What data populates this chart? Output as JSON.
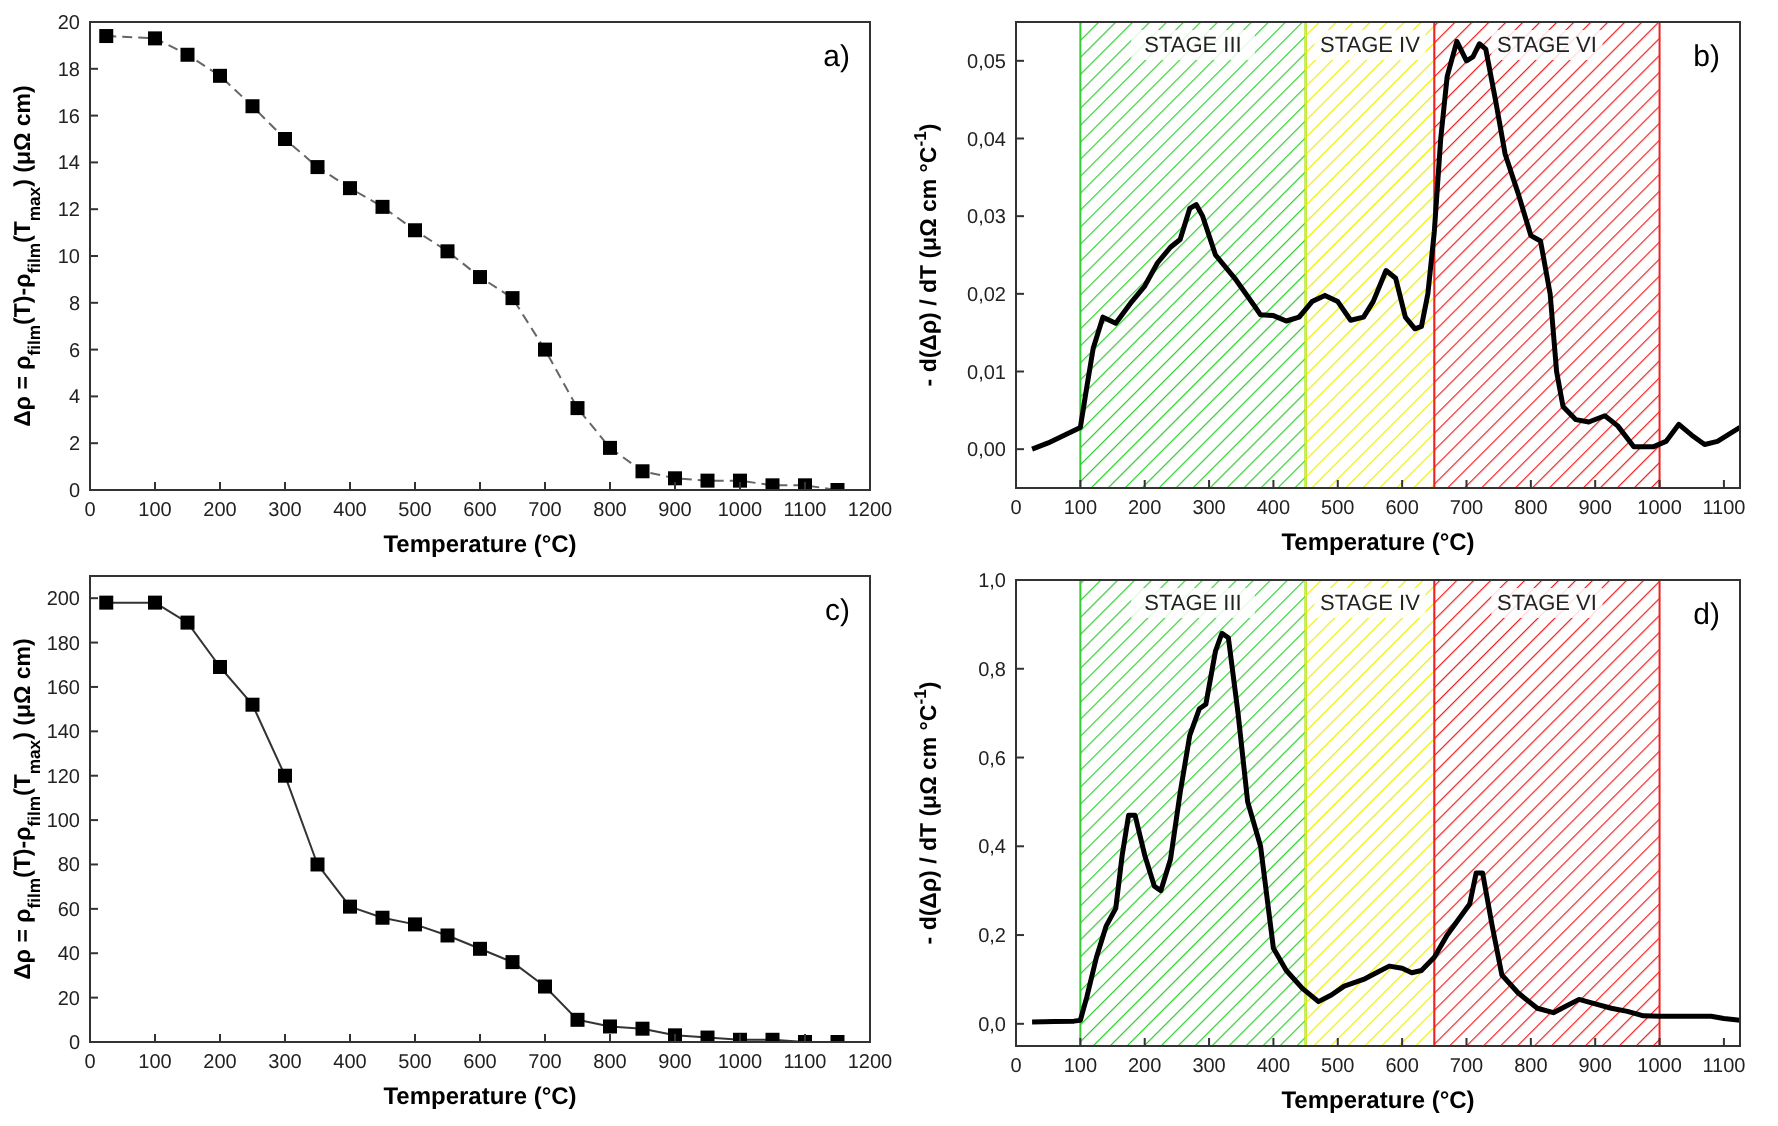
{
  "chart_data": [
    {
      "type": "line",
      "xlabel": "Temperature (°C)",
      "ylabel": "Δρ = ρ$_{film}$(T)-ρ$_{film}$(T$_{max}$) (μΩ cm)",
      "annotations": [
        "a)"
      ],
      "xlim": [
        0,
        1200
      ],
      "ylim": [
        0,
        20
      ],
      "xticks": [
        0,
        100,
        200,
        300,
        400,
        500,
        600,
        700,
        800,
        900,
        1000,
        1100,
        1200
      ],
      "yticks": [
        0,
        2,
        4,
        6,
        8,
        10,
        12,
        14,
        16,
        18,
        20
      ],
      "marker": "square",
      "line_style": "dashed",
      "x": [
        25,
        100,
        150,
        200,
        250,
        300,
        350,
        400,
        450,
        500,
        550,
        600,
        650,
        700,
        750,
        800,
        850,
        900,
        950,
        1000,
        1050,
        1100,
        1150
      ],
      "series": [
        {
          "color": "#000000",
          "values": [
            19.4,
            19.3,
            18.6,
            17.7,
            16.4,
            15.0,
            13.8,
            12.9,
            12.1,
            11.1,
            10.2,
            9.1,
            8.2,
            6.0,
            3.5,
            1.8,
            0.8,
            0.5,
            0.4,
            0.4,
            0.2,
            0.2,
            0.0
          ]
        }
      ]
    },
    {
      "type": "line",
      "xlabel": "Temperature (°C)",
      "ylabel": "- d(Δρ) / dT (μΩ cm °C$^{-1}$)",
      "annotations": [
        "b)"
      ],
      "xlim": [
        0,
        1125
      ],
      "ylim": [
        -0.005,
        0.055
      ],
      "xticks": [
        0,
        100,
        200,
        300,
        400,
        500,
        600,
        700,
        800,
        900,
        1000,
        1100
      ],
      "yticks": [
        {
          "value": 0,
          "label": "0,00"
        },
        {
          "value": 0.01,
          "label": "0,01"
        },
        {
          "value": 0.02,
          "label": "0,02"
        },
        {
          "value": 0.03,
          "label": "0,03"
        },
        {
          "value": 0.04,
          "label": "0,04"
        },
        {
          "value": 0.05,
          "label": "0,05"
        }
      ],
      "bands": [
        {
          "axis": "x",
          "from": 100,
          "to": 450,
          "label": "STAGE III",
          "color": "#33cc33"
        },
        {
          "axis": "x",
          "from": 450,
          "to": 650,
          "label": "STAGE IV",
          "color": "#eeee00"
        },
        {
          "axis": "x",
          "from": 650,
          "to": 1000,
          "label": "STAGE VI",
          "color": "#ee2222"
        }
      ],
      "x": [
        25,
        50,
        75,
        100,
        110,
        120,
        135,
        155,
        180,
        200,
        220,
        240,
        255,
        270,
        280,
        290,
        310,
        340,
        370,
        380,
        400,
        420,
        440,
        460,
        480,
        500,
        520,
        540,
        555,
        575,
        590,
        605,
        620,
        630,
        640,
        650,
        660,
        670,
        685,
        700,
        710,
        720,
        730,
        745,
        760,
        780,
        800,
        815,
        830,
        840,
        850,
        870,
        890,
        915,
        935,
        960,
        990,
        1010,
        1030,
        1050,
        1070,
        1090,
        1125
      ],
      "series": [
        {
          "color": "#000000",
          "values": [
            0.0,
            0.0008,
            0.0018,
            0.0028,
            0.008,
            0.013,
            0.017,
            0.0162,
            0.019,
            0.021,
            0.024,
            0.026,
            0.027,
            0.031,
            0.0315,
            0.03,
            0.025,
            0.022,
            0.0185,
            0.0173,
            0.0172,
            0.0165,
            0.017,
            0.019,
            0.0198,
            0.019,
            0.0166,
            0.017,
            0.019,
            0.023,
            0.022,
            0.017,
            0.0155,
            0.0158,
            0.02,
            0.028,
            0.04,
            0.048,
            0.0525,
            0.05,
            0.0505,
            0.0522,
            0.0515,
            0.045,
            0.038,
            0.033,
            0.0275,
            0.0268,
            0.02,
            0.01,
            0.0055,
            0.0038,
            0.0035,
            0.0043,
            0.003,
            0.0003,
            0.0003,
            0.001,
            0.0032,
            0.0018,
            0.0006,
            0.001,
            0.0028
          ]
        }
      ]
    },
    {
      "type": "line",
      "xlabel": "Temperature (°C)",
      "ylabel": "Δρ = ρ$_{film}$(T)-ρ$_{film}$(T$_{max}$) (μΩ cm)",
      "annotations": [
        "c)"
      ],
      "xlim": [
        0,
        1200
      ],
      "ylim": [
        0,
        210
      ],
      "xticks": [
        0,
        100,
        200,
        300,
        400,
        500,
        600,
        700,
        800,
        900,
        1000,
        1100,
        1200
      ],
      "yticks": [
        0,
        20,
        40,
        60,
        80,
        100,
        120,
        140,
        160,
        180,
        200
      ],
      "marker": "square",
      "line_style": "solid",
      "x": [
        25,
        100,
        150,
        200,
        250,
        300,
        350,
        400,
        450,
        500,
        550,
        600,
        650,
        700,
        750,
        800,
        850,
        900,
        950,
        1000,
        1050,
        1100,
        1150
      ],
      "series": [
        {
          "color": "#000000",
          "values": [
            198,
            198,
            189,
            169,
            152,
            120,
            80,
            61,
            56,
            53,
            48,
            42,
            36,
            25,
            10,
            7,
            6,
            3,
            2,
            1,
            1,
            0,
            0
          ]
        }
      ]
    },
    {
      "type": "line",
      "xlabel": "Temperature (°C)",
      "ylabel": "- d(Δρ) / dT (μΩ cm °C$^{-1}$)",
      "annotations": [
        "d)"
      ],
      "xlim": [
        0,
        1125
      ],
      "ylim": [
        -0.05,
        1.0
      ],
      "xticks": [
        0,
        100,
        200,
        300,
        400,
        500,
        600,
        700,
        800,
        900,
        1000,
        1100
      ],
      "yticks": [
        {
          "value": 0,
          "label": "0,0"
        },
        {
          "value": 0.2,
          "label": "0,2"
        },
        {
          "value": 0.4,
          "label": "0,4"
        },
        {
          "value": 0.6,
          "label": "0,6"
        },
        {
          "value": 0.8,
          "label": "0,8"
        },
        {
          "value": 1.0,
          "label": "1,0"
        }
      ],
      "bands": [
        {
          "axis": "x",
          "from": 100,
          "to": 450,
          "label": "STAGE III",
          "color": "#33cc33"
        },
        {
          "axis": "x",
          "from": 450,
          "to": 650,
          "label": "STAGE IV",
          "color": "#eeee00"
        },
        {
          "axis": "x",
          "from": 650,
          "to": 1000,
          "label": "STAGE VI",
          "color": "#ee2222"
        }
      ],
      "x": [
        25,
        60,
        90,
        100,
        110,
        125,
        140,
        155,
        165,
        175,
        185,
        200,
        215,
        225,
        240,
        255,
        270,
        285,
        295,
        310,
        320,
        330,
        345,
        360,
        380,
        400,
        420,
        445,
        470,
        490,
        510,
        540,
        560,
        580,
        600,
        615,
        630,
        650,
        670,
        690,
        705,
        715,
        725,
        740,
        755,
        780,
        810,
        835,
        855,
        875,
        900,
        925,
        950,
        975,
        1000,
        1050,
        1080,
        1100,
        1125
      ],
      "series": [
        {
          "color": "#000000",
          "values": [
            0.004,
            0.005,
            0.006,
            0.008,
            0.06,
            0.15,
            0.22,
            0.26,
            0.38,
            0.47,
            0.47,
            0.38,
            0.31,
            0.3,
            0.37,
            0.52,
            0.65,
            0.71,
            0.72,
            0.84,
            0.88,
            0.87,
            0.7,
            0.5,
            0.4,
            0.17,
            0.12,
            0.08,
            0.05,
            0.065,
            0.085,
            0.1,
            0.115,
            0.13,
            0.125,
            0.115,
            0.12,
            0.15,
            0.2,
            0.24,
            0.27,
            0.34,
            0.34,
            0.22,
            0.11,
            0.07,
            0.035,
            0.025,
            0.04,
            0.055,
            0.045,
            0.035,
            0.028,
            0.018,
            0.017,
            0.017,
            0.017,
            0.012,
            0.008
          ]
        }
      ]
    }
  ]
}
